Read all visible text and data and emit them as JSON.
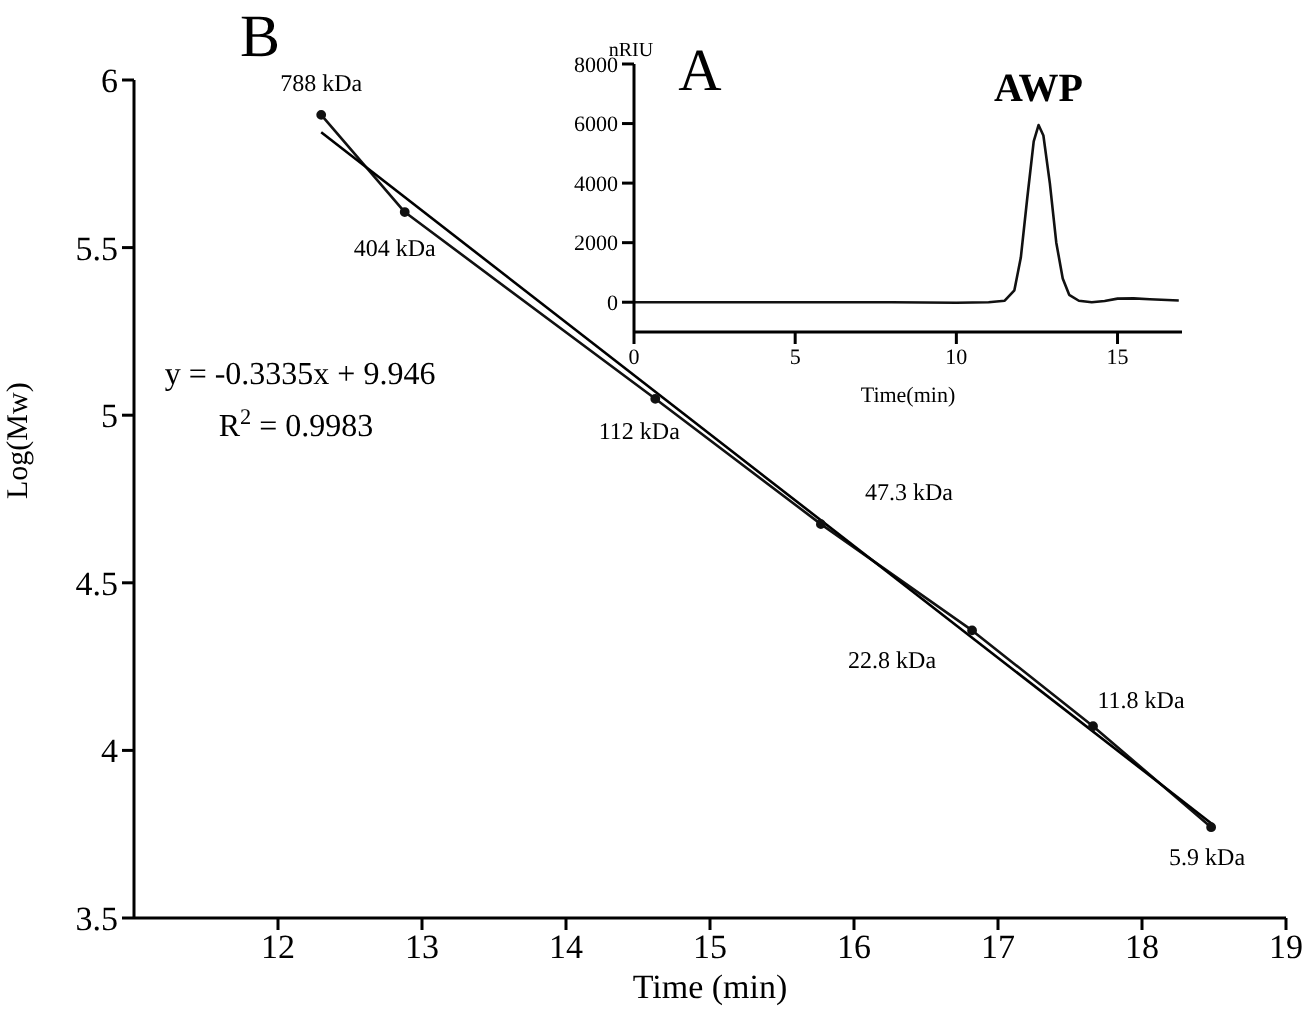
{
  "chart_data": [
    {
      "type": "line",
      "title": "B",
      "xlabel": "Time (min)",
      "ylabel": "Log(Mw)",
      "xlim": [
        11,
        19
      ],
      "xticks": [
        12,
        13,
        14,
        15,
        16,
        17,
        18,
        19
      ],
      "ylim": [
        3.5,
        6
      ],
      "yticks": [
        3.5,
        4,
        4.5,
        5,
        5.5,
        6
      ],
      "grid": false,
      "marker": "circle",
      "line_style": "solid",
      "series": [
        {
          "color": "#111111",
          "x": [
            12.3,
            12.88,
            14.62,
            15.77,
            16.82,
            17.66,
            18.48
          ],
          "values": [
            5.896,
            5.606,
            5.049,
            4.675,
            4.358,
            4.072,
            3.771
          ]
        },
        {
          "type": "line",
          "marker": "none",
          "color": "#000000",
          "x": [
            12.3,
            18.5
          ],
          "values": [
            5.844,
            3.776
          ]
        }
      ],
      "annotations": [
        {
          "text": "788 kDa",
          "x": 12.3,
          "y": 5.896
        },
        {
          "text": "404 kDa",
          "x": 12.88,
          "y": 5.606
        },
        {
          "text": "112 kDa",
          "x": 14.62,
          "y": 5.049
        },
        {
          "text": "47.3 kDa",
          "x": 15.77,
          "y": 4.675
        },
        {
          "text": "22.8 kDa",
          "x": 16.82,
          "y": 4.358
        },
        {
          "text": "11.8 kDa",
          "x": 17.66,
          "y": 4.072
        },
        {
          "text": "5.9 kDa",
          "x": 18.48,
          "y": 3.771
        },
        "y = -0.3335x + 9.946",
        "R$^{2}$ = 0.9983"
      ]
    },
    {
      "type": "line",
      "title": "A",
      "xlabel": "Time(min)",
      "ylabel": "nRIU",
      "xlim": [
        0,
        17
      ],
      "xticks": [
        0,
        5,
        10,
        15
      ],
      "ylim": [
        -1000,
        8000
      ],
      "yticks": [
        0,
        2000,
        4000,
        6000,
        8000
      ],
      "grid": false,
      "line_style": "solid",
      "series": [
        {
          "color": "#111111",
          "x": [
            0,
            2,
            4,
            6,
            8,
            10,
            11,
            11.5,
            11.8,
            12,
            12.2,
            12.4,
            12.55,
            12.7,
            12.9,
            13.1,
            13.3,
            13.5,
            13.8,
            14.2,
            14.6,
            15,
            15.5,
            16,
            16.9
          ],
          "values": [
            0,
            0,
            0,
            0,
            0,
            -20,
            0,
            50,
            400,
            1500,
            3500,
            5400,
            5950,
            5600,
            4000,
            2000,
            800,
            250,
            50,
            0,
            40,
            120,
            130,
            100,
            60
          ]
        }
      ],
      "annotations": [
        {
          "text": "AWP",
          "x": 12.55,
          "y": 5950
        }
      ]
    }
  ]
}
